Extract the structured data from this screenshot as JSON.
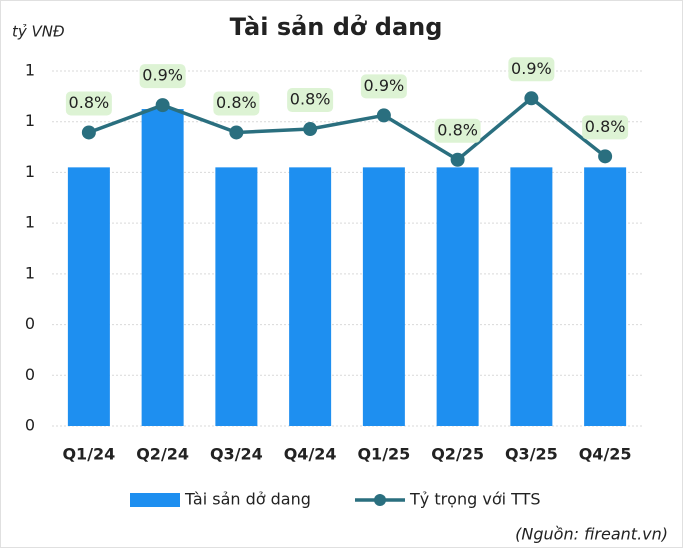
{
  "chart_data": {
    "type": "bar_line",
    "title": "Tài sản dở dang",
    "y_axis_label": "tỷ VNĐ",
    "source": "(Nguồn: fireant.vn)",
    "categories": [
      "Q1/24",
      "Q2/24",
      "Q3/24",
      "Q4/24",
      "Q1/25",
      "Q2/25",
      "Q3/25",
      "Q4/25"
    ],
    "ylim": [
      0,
      1.4
    ],
    "yticks": [
      {
        "value": 0,
        "label": "0"
      },
      {
        "value": 0.2,
        "label": "0"
      },
      {
        "value": 0.4,
        "label": "0"
      },
      {
        "value": 0.6,
        "label": "1"
      },
      {
        "value": 0.8,
        "label": "1"
      },
      {
        "value": 1.0,
        "label": "1"
      },
      {
        "value": 1.2,
        "label": "1"
      },
      {
        "value": 1.4,
        "label": "1"
      }
    ],
    "y2lim": [
      0.41,
      0.93
    ],
    "grid": true,
    "legend": "bottom",
    "series": [
      {
        "name": "Tài sản dở dang",
        "type": "bar",
        "color": "#1e8ff0",
        "values": [
          1.02,
          1.25,
          1.02,
          1.02,
          1.02,
          1.02,
          1.02,
          1.02
        ]
      },
      {
        "name": "Tỷ trọng với TTS",
        "type": "line",
        "axis": "y2",
        "color": "#2a6f7f",
        "values": [
          0.84,
          0.88,
          0.84,
          0.845,
          0.865,
          0.8,
          0.89,
          0.805
        ],
        "value_labels": [
          "0.8%",
          "0.9%",
          "0.8%",
          "0.8%",
          "0.9%",
          "0.8%",
          "0.9%",
          "0.8%"
        ]
      }
    ]
  }
}
